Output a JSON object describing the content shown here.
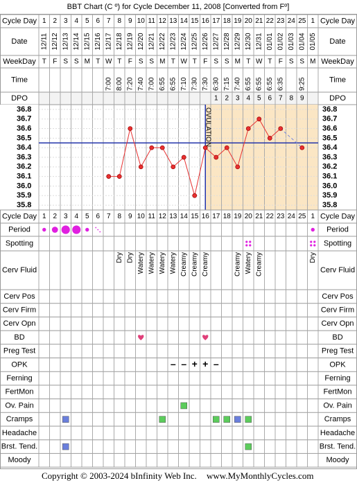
{
  "title": "BBT Chart (C º) for Cycle December 11, 2008  [Converted from Fº]",
  "header_labels": {
    "cycle_day": "Cycle Day",
    "date": "Date",
    "weekday": "WeekDay",
    "time": "Time",
    "dpo": "DPO"
  },
  "columns": {
    "cycle_day": [
      1,
      2,
      3,
      4,
      5,
      6,
      7,
      8,
      9,
      10,
      11,
      12,
      13,
      14,
      15,
      16,
      17,
      18,
      19,
      20,
      21,
      22,
      23,
      24,
      25,
      1
    ],
    "date": [
      "12/11",
      "12/12",
      "12/13",
      "12/14",
      "12/15",
      "12/16",
      "12/17",
      "12/18",
      "12/19",
      "12/20",
      "12/21",
      "12/22",
      "12/23",
      "12/24",
      "12/25",
      "12/26",
      "12/27",
      "12/28",
      "12/29",
      "12/30",
      "12/31",
      "01/01",
      "01/02",
      "01/03",
      "01/04",
      "01/05"
    ],
    "weekday": [
      "T",
      "F",
      "S",
      "S",
      "M",
      "T",
      "W",
      "T",
      "F",
      "S",
      "S",
      "M",
      "T",
      "W",
      "T",
      "F",
      "S",
      "S",
      "M",
      "T",
      "W",
      "T",
      "F",
      "S",
      "S",
      "M"
    ],
    "time": [
      null,
      null,
      null,
      null,
      null,
      null,
      "7:00",
      "8:00",
      "7:20",
      "7:40",
      "7:00",
      "6:55",
      "6:55",
      "7:10",
      "7:30",
      "7:30",
      "6:30",
      "7:15",
      "7:40",
      "6:55",
      "6:55",
      "6:55",
      "6:35",
      null,
      "9:25",
      null
    ],
    "dpo": [
      null,
      null,
      null,
      null,
      null,
      null,
      null,
      null,
      null,
      null,
      null,
      null,
      null,
      null,
      null,
      null,
      1,
      2,
      3,
      4,
      5,
      6,
      7,
      8,
      9,
      null
    ]
  },
  "chart_data": {
    "type": "line",
    "series": [
      {
        "name": "BBT",
        "color": "#e83030",
        "values": [
          null,
          null,
          null,
          null,
          null,
          null,
          36.1,
          36.1,
          36.6,
          36.2,
          36.4,
          36.4,
          36.2,
          36.3,
          35.9,
          36.4,
          36.3,
          36.4,
          36.2,
          36.6,
          36.7,
          36.5,
          36.6,
          null,
          36.4,
          null
        ]
      }
    ],
    "ylim": [
      35.75,
      36.85
    ],
    "yticks": [
      36.8,
      36.7,
      36.6,
      36.5,
      36.4,
      36.3,
      36.2,
      36.1,
      {
        "value": 36,
        "label": "36.0"
      },
      35.9,
      35.8
    ],
    "coverline": 36.45,
    "coverline_color": "#2233aa",
    "ovulation_day": 16,
    "ovulation_label": "OVULATION",
    "grid": true
  },
  "rows": [
    {
      "label": "Period",
      "marker": "period",
      "color": "#e020e0",
      "values": [
        1,
        2,
        3,
        3,
        1,
        0.5,
        null,
        null,
        null,
        null,
        null,
        null,
        null,
        null,
        null,
        null,
        null,
        null,
        null,
        null,
        null,
        null,
        null,
        null,
        null,
        1
      ]
    },
    {
      "label": "Spotting",
      "marker": "spot",
      "color": "#e020e0",
      "values": [
        null,
        null,
        null,
        null,
        null,
        null,
        null,
        null,
        null,
        null,
        null,
        null,
        null,
        null,
        null,
        null,
        null,
        null,
        null,
        1,
        null,
        null,
        null,
        null,
        null,
        1
      ]
    },
    {
      "label": "Cerv Fluid",
      "marker": "text",
      "texts": [
        null,
        null,
        null,
        null,
        null,
        null,
        null,
        "Dry",
        "Dry",
        "Watery",
        "Watery",
        "Watery",
        "Watery",
        "Creamy",
        "Creamy",
        "Creamy",
        null,
        null,
        "Creamy",
        "Watery",
        "Creamy",
        null,
        null,
        null,
        null,
        "Dry"
      ]
    },
    {
      "label": "Cerv Pos"
    },
    {
      "label": "Cerv Firm"
    },
    {
      "label": "Cerv Opn"
    },
    {
      "label": "BD",
      "marker": "heart",
      "color": "#e0407a",
      "values": [
        null,
        null,
        null,
        null,
        null,
        null,
        null,
        null,
        null,
        1,
        null,
        null,
        null,
        null,
        null,
        1,
        null,
        null,
        null,
        null,
        null,
        null,
        null,
        null,
        null,
        null
      ]
    },
    {
      "label": "Preg Test"
    },
    {
      "label": "OPK",
      "marker": "symbol",
      "color": "#6a5acd",
      "texts": [
        null,
        null,
        null,
        null,
        null,
        null,
        null,
        null,
        null,
        null,
        null,
        null,
        "–",
        "–",
        "+",
        "+",
        "–",
        null,
        null,
        null,
        null,
        null,
        null,
        null,
        null,
        null
      ]
    },
    {
      "label": "Ferning"
    },
    {
      "label": "FertMon"
    },
    {
      "label": "Ov. Pain",
      "marker": "square",
      "colors": [
        null,
        null,
        null,
        null,
        null,
        null,
        null,
        null,
        null,
        null,
        null,
        null,
        null,
        "#5ccc5c",
        null,
        null,
        null,
        null,
        null,
        null,
        null,
        null,
        null,
        null,
        null,
        null
      ]
    },
    {
      "label": "Cramps",
      "marker": "square",
      "colors": [
        null,
        null,
        "#6a7fdc",
        null,
        null,
        null,
        null,
        null,
        null,
        null,
        null,
        "#5ccc5c",
        null,
        null,
        null,
        null,
        "#5ccc5c",
        "#5ccc5c",
        "#6a7fdc",
        "#5ccc5c",
        null,
        null,
        null,
        null,
        null,
        null
      ]
    },
    {
      "label": "Headache"
    },
    {
      "label": "Brst. Tend.",
      "marker": "square",
      "colors": [
        null,
        null,
        "#6a7fdc",
        null,
        null,
        null,
        null,
        null,
        null,
        null,
        null,
        null,
        null,
        null,
        null,
        null,
        null,
        null,
        null,
        "#5ccc5c",
        null,
        null,
        null,
        null,
        null,
        null
      ]
    },
    {
      "label": "Moody"
    }
  ],
  "footer": {
    "copyright": "Copyright © 2003-2024 bInfinity Web Inc.",
    "website": "www.MyMonthlyCycles.com"
  }
}
